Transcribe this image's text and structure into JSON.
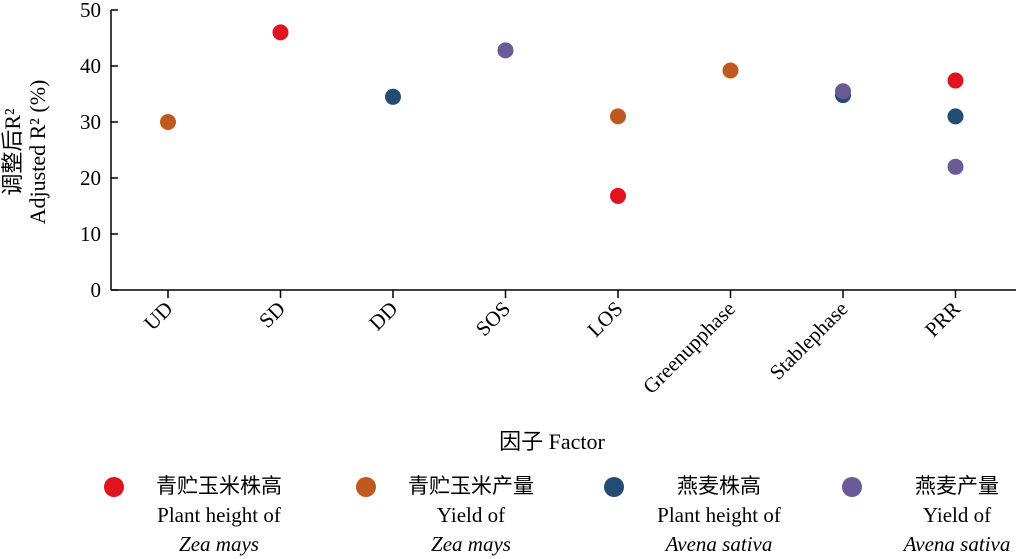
{
  "chart_data": {
    "type": "scatter",
    "categories": [
      "UD",
      "SD",
      "DD",
      "SOS",
      "LOS",
      "Greenupphase",
      "Stablephase",
      "PRR"
    ],
    "xlabel": "因子 Factor",
    "ylabel_cn": "调整后R²",
    "ylabel_en": "Adjusted R² (%)",
    "ylim": [
      0,
      50
    ],
    "yticks": [
      0,
      10,
      20,
      30,
      40,
      50
    ],
    "grid": false,
    "legend_position": "bottom",
    "series": [
      {
        "name": "青贮玉米株高 Plant height of Zea mays",
        "color": "#e0141e",
        "values": [
          null,
          46,
          null,
          null,
          16.8,
          null,
          null,
          37.4
        ]
      },
      {
        "name": "青贮玉米产量 Yield of Zea mays",
        "color": "#c0591f",
        "values": [
          30,
          null,
          null,
          null,
          31,
          39.2,
          null,
          null
        ]
      },
      {
        "name": "燕麦株高 Plant height of Avena sativa",
        "color": "#234c72",
        "values": [
          null,
          null,
          34.5,
          null,
          null,
          null,
          34.8,
          31
        ]
      },
      {
        "name": "燕麦产量 Yield of Avena sativa",
        "color": "#6a5a96",
        "values": [
          null,
          null,
          null,
          42.8,
          null,
          null,
          35.5,
          22
        ]
      }
    ]
  },
  "legend": [
    {
      "cn": "青贮玉米株高",
      "en": "Plant height of",
      "it": "Zea mays",
      "color": "#e0141e"
    },
    {
      "cn": "青贮玉米产量",
      "en": "Yield of",
      "it": "Zea mays",
      "color": "#c0591f"
    },
    {
      "cn": "燕麦株高",
      "en": "Plant height of",
      "it": "Avena sativa",
      "color": "#234c72"
    },
    {
      "cn": "燕麦产量",
      "en": "Yield of",
      "it": "Avena sativa",
      "color": "#6a5a96"
    }
  ]
}
